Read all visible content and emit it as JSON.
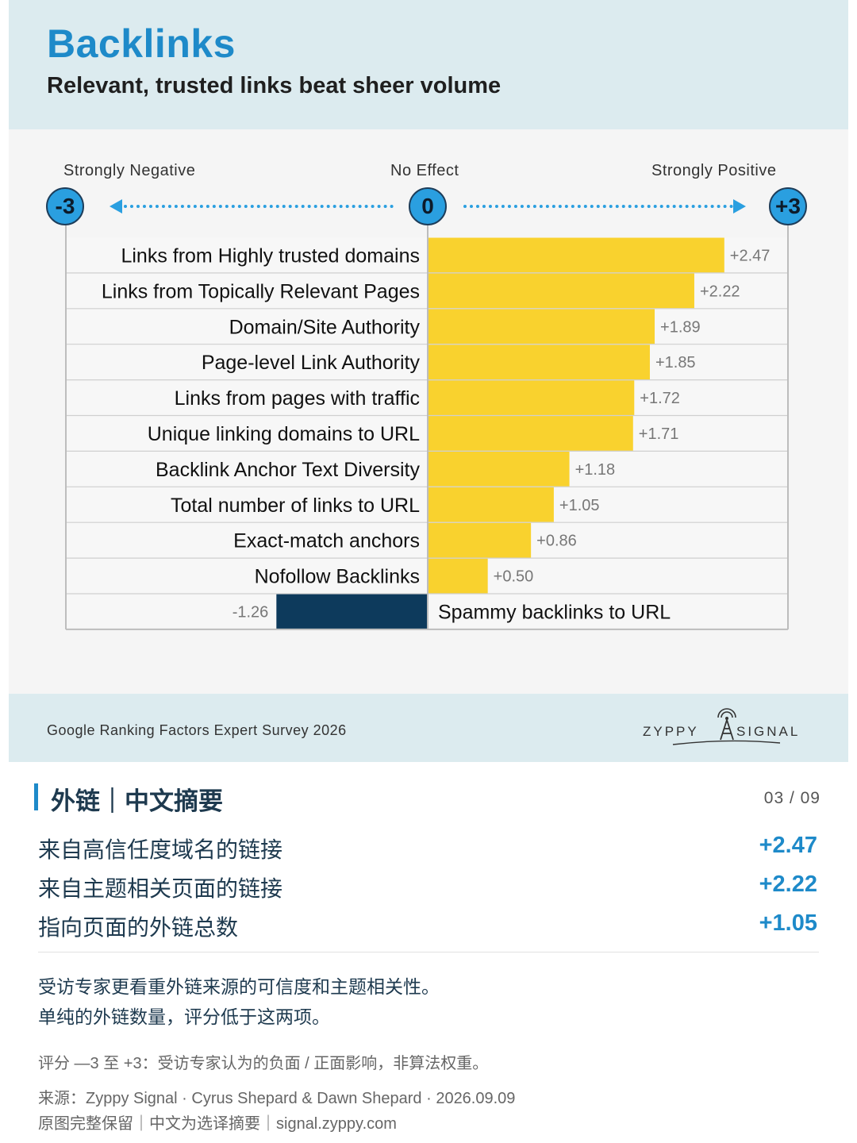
{
  "header": {
    "title": "Backlinks",
    "subtitle": "Relevant, trusted links beat sheer volume"
  },
  "scale": {
    "negative_label": "Strongly Negative",
    "neutral_label": "No Effect",
    "positive_label": "Strongly Positive",
    "min_badge": "-3",
    "zero_badge": "0",
    "max_badge": "+3"
  },
  "chart_data": {
    "type": "bar",
    "orientation": "horizontal",
    "xlim": [
      -3,
      3
    ],
    "categories": [
      "Links from Highly trusted domains",
      "Links from Topically Relevant Pages",
      "Domain/Site Authority",
      "Page-level Link Authority",
      "Links from pages with traffic",
      "Unique linking domains to URL",
      "Backlink Anchor Text Diversity",
      "Total number of links to URL",
      "Exact-match anchors",
      "Nofollow Backlinks",
      "Spammy backlinks to URL"
    ],
    "values": [
      2.47,
      2.22,
      1.89,
      1.85,
      1.72,
      1.71,
      1.18,
      1.05,
      0.86,
      0.5,
      -1.26
    ],
    "value_labels": [
      "+2.47",
      "+2.22",
      "+1.89",
      "+1.85",
      "+1.72",
      "+1.71",
      "+1.18",
      "+1.05",
      "+0.86",
      "+0.50",
      "-1.26"
    ],
    "colors": {
      "positive": "#f9d22e",
      "negative": "#0d3a5c"
    }
  },
  "footer": {
    "survey": "Google Ranking Factors Expert Survey 2026",
    "brand_left": "ZYPPY",
    "brand_right": "SIGNAL"
  },
  "summary": {
    "title": "外链｜中文摘要",
    "page": "03 / 09",
    "rows": [
      {
        "label": "来自高信任度域名的链接",
        "value": "+2.47"
      },
      {
        "label": "来自主题相关页面的链接",
        "value": "+2.22"
      },
      {
        "label": "指向页面的外链总数",
        "value": "+1.05"
      }
    ],
    "note_line1": "受访专家更看重外链来源的可信度和主题相关性。",
    "note_line2": "单纯的外链数量，评分低于这两项。",
    "scale_note": "评分 —3 至 +3：受访专家认为的负面 / 正面影响，非算法权重。",
    "source": "来源：Zyppy Signal · Cyrus Shepard & Dawn Shepard · 2026.09.09",
    "credit": "原图完整保留｜中文为选译摘要｜signal.zyppy.com"
  },
  "accent": "#1e8ac9"
}
